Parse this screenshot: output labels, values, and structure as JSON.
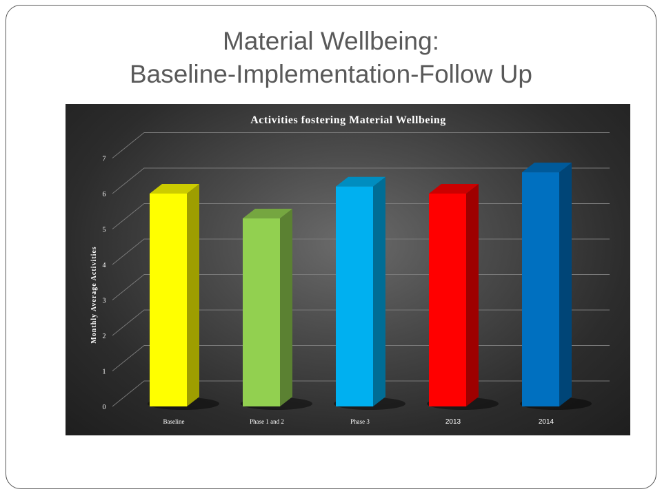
{
  "slide": {
    "title_line1": "Material Wellbeing:",
    "title_line2": "Baseline-Implementation-Follow Up"
  },
  "chart_data": {
    "type": "bar",
    "title": "Activities fostering  Material Wellbeing",
    "ylabel": "Monthly Average Activities",
    "xlabel": "",
    "categories": [
      "Baseline",
      "Phase 1 and 2",
      "Phase 3",
      "2013",
      "2014"
    ],
    "values": [
      6.0,
      5.3,
      6.2,
      6.0,
      6.6
    ],
    "colors": [
      "#ffff00",
      "#92d050",
      "#00b0f0",
      "#ff0000",
      "#0070c0"
    ],
    "ylim": [
      0,
      7
    ],
    "yticks": [
      0,
      1,
      2,
      3,
      4,
      5,
      6,
      7
    ],
    "grid": true,
    "legend": "none",
    "background": "#2e2e2e"
  }
}
